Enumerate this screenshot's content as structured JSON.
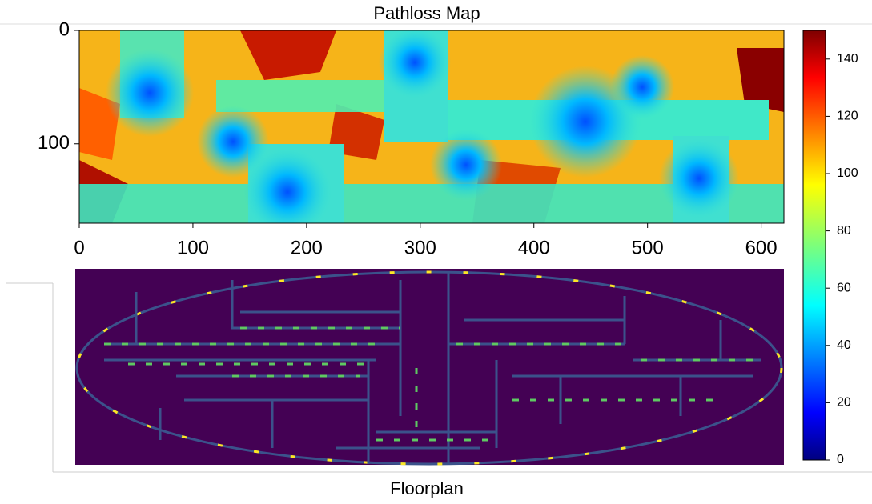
{
  "pathloss_map": {
    "title": "Pathloss Map",
    "xlim": [
      0,
      620
    ],
    "ylim": [
      0,
      170
    ],
    "xticks": [
      0,
      100,
      200,
      300,
      400,
      500,
      600
    ],
    "yticks": [
      0,
      100
    ]
  },
  "colorbar": {
    "lim": [
      0,
      150
    ],
    "ticks": [
      0,
      20,
      40,
      60,
      80,
      100,
      120,
      140
    ]
  },
  "floorplan": {
    "title": "Floorplan"
  }
}
